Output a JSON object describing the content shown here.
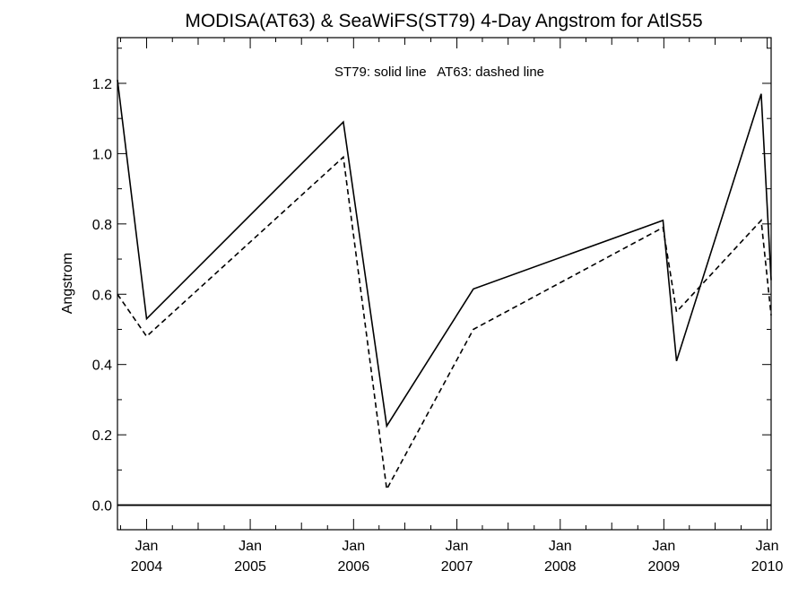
{
  "chart_data": {
    "type": "line",
    "title": "MODISA(AT63) & SeaWiFS(ST79) 4-Day Angstrom for AtlS55",
    "annotation": "ST79: solid line   AT63: dashed line",
    "xlabel": "",
    "ylabel": "Angstrom",
    "xlim": [
      "2003-09-20",
      "2010-01-15"
    ],
    "ylim": [
      -0.07,
      1.33
    ],
    "grid": false,
    "x_ticks": [
      {
        "month": "Jan",
        "year": "2004",
        "date": "2004-01-01"
      },
      {
        "month": "Jan",
        "year": "2005",
        "date": "2005-01-01"
      },
      {
        "month": "Jan",
        "year": "2006",
        "date": "2006-01-01"
      },
      {
        "month": "Jan",
        "year": "2007",
        "date": "2007-01-01"
      },
      {
        "month": "Jan",
        "year": "2008",
        "date": "2008-01-01"
      },
      {
        "month": "Jan",
        "year": "2009",
        "date": "2009-01-01"
      },
      {
        "month": "Jan",
        "year": "2010",
        "date": "2010-01-01"
      }
    ],
    "y_ticks": [
      "0.0",
      "0.2",
      "0.4",
      "0.6",
      "0.8",
      "1.0",
      "1.2"
    ],
    "series": [
      {
        "style": "solid",
        "points": [
          [
            "2003-09-20",
            1.21
          ],
          [
            "2004-01-01",
            0.53
          ],
          [
            "2005-11-26",
            1.09
          ],
          [
            "2006-04-28",
            0.225
          ],
          [
            "2007-02-28",
            0.615
          ],
          [
            "2008-12-29",
            0.81
          ],
          [
            "2009-02-15",
            0.41
          ],
          [
            "2009-12-11",
            1.17
          ],
          [
            "2010-01-15",
            0.64
          ]
        ]
      },
      {
        "style": "dashed",
        "points": [
          [
            "2003-09-20",
            0.6
          ],
          [
            "2004-01-01",
            0.48
          ],
          [
            "2005-11-26",
            0.99
          ],
          [
            "2006-04-28",
            0.045
          ],
          [
            "2007-02-28",
            0.5
          ],
          [
            "2008-12-29",
            0.79
          ],
          [
            "2009-02-15",
            0.55
          ],
          [
            "2009-12-11",
            0.81
          ],
          [
            "2010-01-15",
            0.54
          ]
        ]
      }
    ],
    "reference_line": 0.0
  }
}
